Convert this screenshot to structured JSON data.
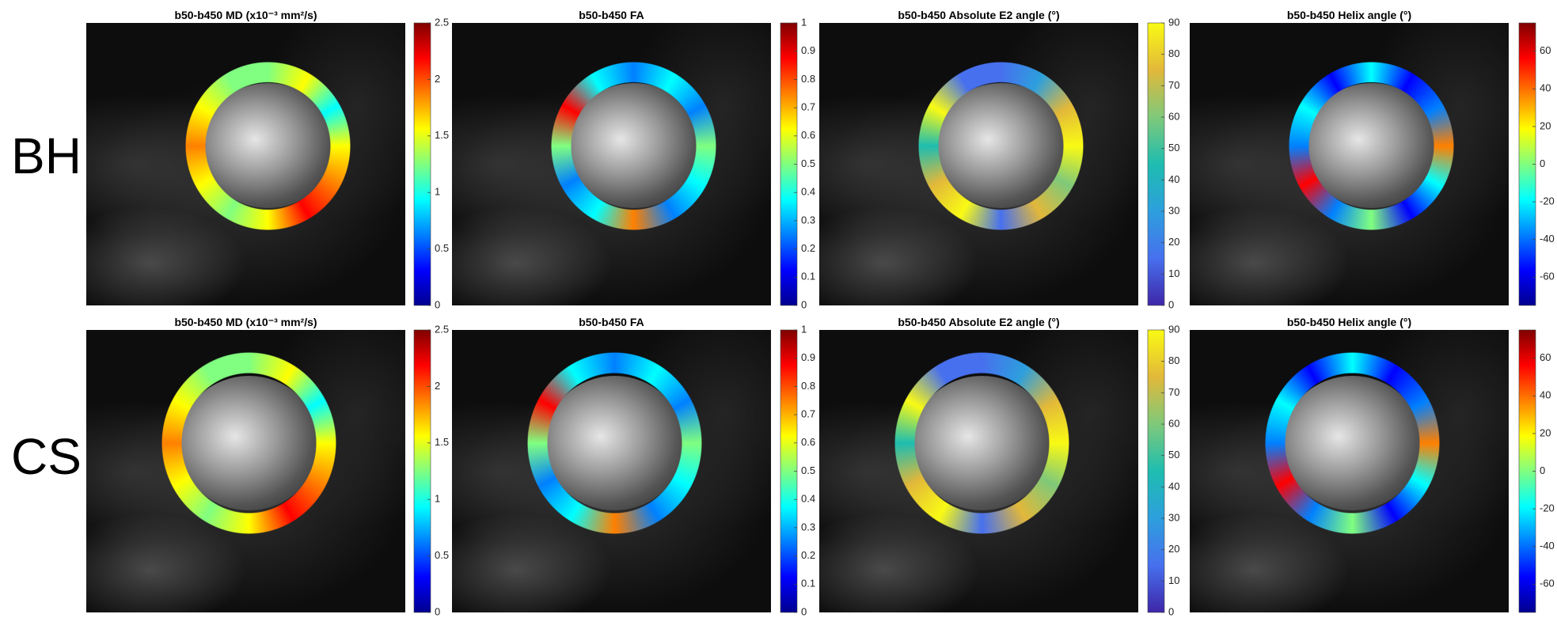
{
  "rows": [
    {
      "label": "BH",
      "panels": [
        {
          "title": "b50-b450 MD (x10⁻³ mm²/s)",
          "colors": [
            "#00008f",
            "#0000ff",
            "#0080ff",
            "#00ffff",
            "#80ff80",
            "#ffff00",
            "#ff8000",
            "#ff0000",
            "#800000"
          ],
          "lim": [
            0,
            2.5
          ],
          "ticks": [
            0,
            0.5,
            1,
            1.5,
            2,
            2.5
          ]
        },
        {
          "title": "b50-b450 FA",
          "colors": [
            "#00008f",
            "#0000ff",
            "#0080ff",
            "#00ffff",
            "#80ff80",
            "#ffff00",
            "#ff8000",
            "#ff0000",
            "#800000"
          ],
          "lim": [
            0,
            1
          ],
          "ticks": [
            0,
            0.1,
            0.2,
            0.3,
            0.4,
            0.5,
            0.6,
            0.7,
            0.8,
            0.9,
            1
          ]
        },
        {
          "title": "b50-b450 Absolute E2 angle (°)",
          "colors": [
            "#3e26a8",
            "#4770ee",
            "#2d9fdd",
            "#1ebdb0",
            "#7fc97a",
            "#e2b83a",
            "#f9fa14"
          ],
          "lim": [
            0,
            90
          ],
          "ticks": [
            0,
            10,
            20,
            30,
            40,
            50,
            60,
            70,
            80,
            90
          ]
        },
        {
          "title": "b50-b450 Helix angle (°)",
          "colors": [
            "#00008f",
            "#0000ff",
            "#0080ff",
            "#00ffff",
            "#80ff80",
            "#ffff00",
            "#ff8000",
            "#ff0000",
            "#800000"
          ],
          "lim": [
            -75,
            75
          ],
          "ticks": [
            -60,
            -40,
            -20,
            0,
            20,
            40,
            60
          ]
        }
      ]
    },
    {
      "label": "CS",
      "panels": [
        {
          "title": "b50-b450 MD (x10⁻³ mm²/s)",
          "colors": [
            "#00008f",
            "#0000ff",
            "#0080ff",
            "#00ffff",
            "#80ff80",
            "#ffff00",
            "#ff8000",
            "#ff0000",
            "#800000"
          ],
          "lim": [
            0,
            2.5
          ],
          "ticks": [
            0,
            0.5,
            1,
            1.5,
            2,
            2.5
          ]
        },
        {
          "title": "b50-b450 FA",
          "colors": [
            "#00008f",
            "#0000ff",
            "#0080ff",
            "#00ffff",
            "#80ff80",
            "#ffff00",
            "#ff8000",
            "#ff0000",
            "#800000"
          ],
          "lim": [
            0,
            1
          ],
          "ticks": [
            0,
            0.1,
            0.2,
            0.3,
            0.4,
            0.5,
            0.6,
            0.7,
            0.8,
            0.9,
            1
          ]
        },
        {
          "title": "b50-b450 Absolute E2 angle (°)",
          "colors": [
            "#3e26a8",
            "#4770ee",
            "#2d9fdd",
            "#1ebdb0",
            "#7fc97a",
            "#e2b83a",
            "#f9fa14"
          ],
          "lim": [
            0,
            90
          ],
          "ticks": [
            0,
            10,
            20,
            30,
            40,
            50,
            60,
            70,
            80,
            90
          ]
        },
        {
          "title": "b50-b450 Helix angle (°)",
          "colors": [
            "#00008f",
            "#0000ff",
            "#0080ff",
            "#00ffff",
            "#80ff80",
            "#ffff00",
            "#ff8000",
            "#ff0000",
            "#800000"
          ],
          "lim": [
            -75,
            75
          ],
          "ticks": [
            -60,
            -40,
            -20,
            0,
            20,
            40,
            60
          ]
        }
      ]
    }
  ]
}
